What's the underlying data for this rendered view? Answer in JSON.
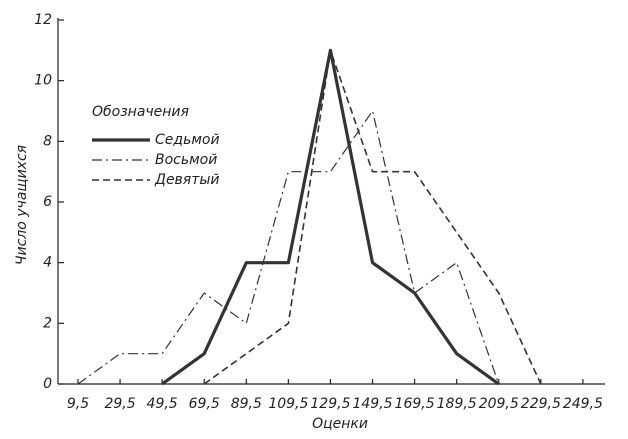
{
  "chart_data": {
    "type": "line",
    "x_label": "Оценки",
    "y_label": "Число учащихся",
    "legend_title": "Обозначения",
    "x": [
      9.5,
      29.5,
      49.5,
      69.5,
      89.5,
      109.5,
      129.5,
      149.5,
      169.5,
      189.5,
      209.5,
      229.5
    ],
    "series": [
      {
        "name": "Седьмой",
        "color": "#333333",
        "values": [
          null,
          null,
          0,
          1,
          4,
          4,
          11,
          4,
          3,
          1,
          0,
          null
        ]
      },
      {
        "name": "Восьмой",
        "color": "#333333",
        "values": [
          0,
          1,
          1,
          3,
          2,
          7,
          7,
          9,
          3,
          4,
          0,
          null
        ]
      },
      {
        "name": "Девятый",
        "color": "#333333",
        "values": [
          null,
          null,
          null,
          0,
          1,
          2,
          11,
          7,
          7,
          5,
          3,
          0
        ]
      }
    ],
    "xlim": [
      0,
      260
    ],
    "ylim": [
      0,
      12
    ],
    "xticks": [
      {
        "value": 9.5,
        "label": "9,5"
      },
      {
        "value": 29.5,
        "label": "29,5"
      },
      {
        "value": 49.5,
        "label": "49,5"
      },
      {
        "value": 69.5,
        "label": "69,5"
      },
      {
        "value": 89.5,
        "label": "89,5"
      },
      {
        "value": 109.5,
        "label": "109,5"
      },
      {
        "value": 129.5,
        "label": "129,5"
      },
      {
        "value": 149.5,
        "label": "149,5"
      },
      {
        "value": 169.5,
        "label": "169,5"
      },
      {
        "value": 189.5,
        "label": "189,5"
      },
      {
        "value": 209.5,
        "label": "209,5"
      },
      {
        "value": 229.5,
        "label": "229,5"
      },
      {
        "value": 249.5,
        "label": "249,5"
      }
    ],
    "yticks": [
      0,
      2,
      4,
      6,
      8,
      10,
      12
    ],
    "grid": false
  }
}
